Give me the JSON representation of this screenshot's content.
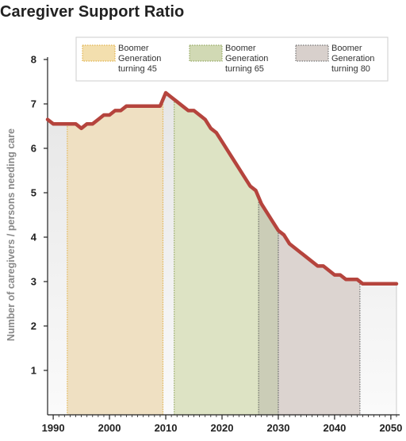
{
  "chart_data": {
    "type": "area",
    "title": "Caregiver Support Ratio",
    "xlabel": "",
    "ylabel": "Number of caregivers / persons needing care",
    "xlim": [
      1989,
      2051
    ],
    "ylim": [
      0,
      8
    ],
    "x_ticks": [
      1990,
      2000,
      2010,
      2020,
      2030,
      2040,
      2050
    ],
    "y_ticks": [
      1,
      2,
      3,
      4,
      5,
      6,
      7,
      8
    ],
    "grid": false,
    "line_color": "#b5443d",
    "series": [
      {
        "x": [
          1989,
          1990,
          1991,
          1992,
          1993,
          1994,
          1995,
          1996,
          1997,
          1998,
          1999,
          2000,
          2001,
          2002,
          2003,
          2004,
          2005,
          2006,
          2007,
          2008,
          2009,
          2010,
          2011,
          2012,
          2013,
          2014,
          2015,
          2016,
          2017,
          2018,
          2019,
          2020,
          2021,
          2022,
          2023,
          2024,
          2025,
          2026,
          2027,
          2028,
          2029,
          2030,
          2031,
          2032,
          2033,
          2034,
          2035,
          2036,
          2037,
          2038,
          2039,
          2040,
          2041,
          2042,
          2043,
          2044,
          2045,
          2046,
          2047,
          2048,
          2049,
          2050,
          2051
        ],
        "y": [
          6.65,
          6.55,
          6.55,
          6.55,
          6.55,
          6.55,
          6.45,
          6.55,
          6.55,
          6.65,
          6.75,
          6.75,
          6.85,
          6.85,
          6.95,
          6.95,
          6.95,
          6.95,
          6.95,
          6.95,
          6.95,
          7.25,
          7.15,
          7.05,
          6.95,
          6.85,
          6.85,
          6.75,
          6.65,
          6.45,
          6.35,
          6.15,
          5.95,
          5.75,
          5.55,
          5.35,
          5.15,
          5.05,
          4.75,
          4.55,
          4.35,
          4.15,
          4.05,
          3.85,
          3.75,
          3.65,
          3.55,
          3.45,
          3.35,
          3.35,
          3.25,
          3.15,
          3.15,
          3.05,
          3.05,
          3.05,
          2.95,
          2.95,
          2.95,
          2.95,
          2.95,
          2.95,
          2.95
        ]
      }
    ],
    "legend": {
      "placement": "top",
      "items": [
        {
          "label_lines": [
            "Boomer",
            "Generation",
            "turning 45"
          ],
          "fill": "#f3dfae",
          "border": "#e1b452"
        },
        {
          "label_lines": [
            "Boomer",
            "Generation",
            "turning 65"
          ],
          "fill": "#d1d9b4",
          "border": "#98aa66"
        },
        {
          "label_lines": [
            "Boomer",
            "Generation",
            "turning 80"
          ],
          "fill": "#d8d0cc",
          "border": "#777777"
        }
      ]
    },
    "bands": [
      {
        "from": 1992.5,
        "to": 2009.5,
        "fill": "#efe0c2",
        "border": "#e1b452"
      },
      {
        "from": 2011.5,
        "to": 2026.5,
        "fill": "#dde3c4",
        "border": "#98aa66"
      },
      {
        "from": 2026.5,
        "to": 2030.0,
        "fill": "#cbcdb7",
        "border": "#777777"
      },
      {
        "from": 2030.0,
        "to": 2044.5,
        "fill": "#dcd4d0",
        "border": "#777777"
      }
    ],
    "background_fill": "#f0f0f0"
  }
}
